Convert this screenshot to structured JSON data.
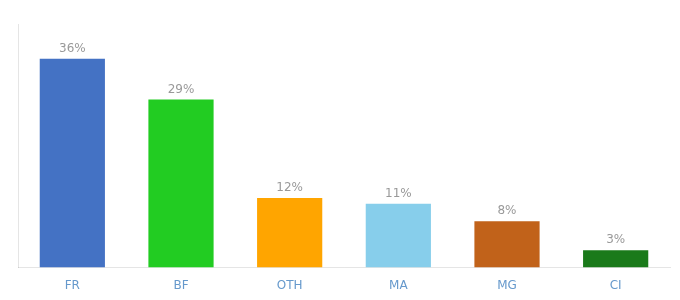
{
  "chart_data": {
    "type": "bar",
    "categories": [
      "FR",
      "BF",
      "OTH",
      "MA",
      "MG",
      "CI"
    ],
    "values": [
      36,
      29,
      12,
      11,
      8,
      3
    ],
    "value_labels": [
      "36%",
      "29%",
      "12%",
      "11%",
      "8%",
      "3%"
    ],
    "colors": [
      "#4472C4",
      "#22CC22",
      "#FFA500",
      "#87CEEB",
      "#C1621A",
      "#1A7A1A"
    ],
    "ylim": [
      0,
      42
    ],
    "tick_labels": "x",
    "data_labels": true,
    "grid": false,
    "legend": null
  }
}
